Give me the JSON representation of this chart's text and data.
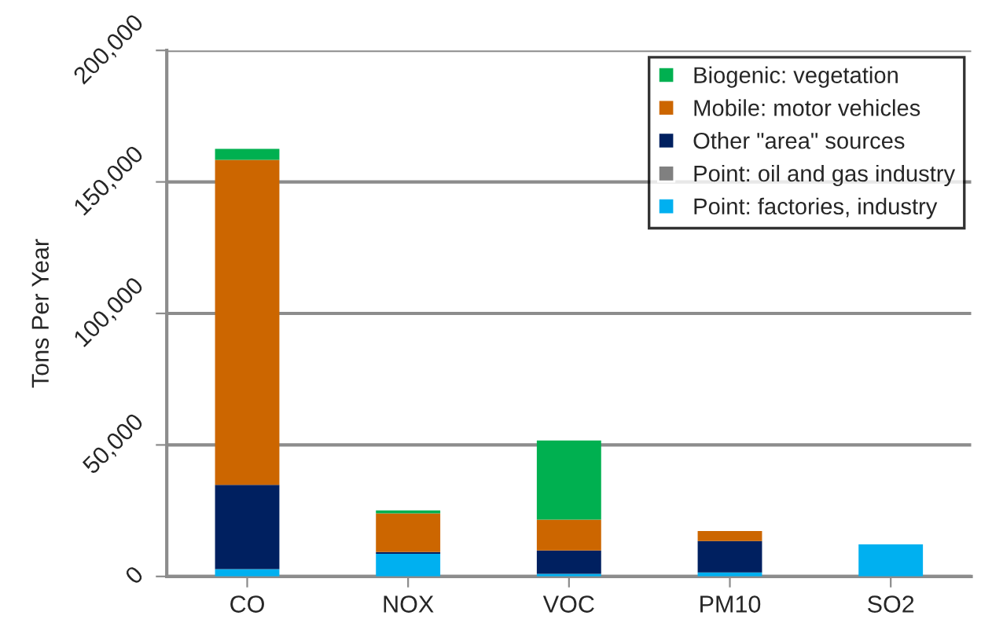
{
  "chart_data": {
    "type": "bar",
    "stacked": true,
    "ylabel": "Tons Per Year",
    "categories": [
      "CO",
      "NOX",
      "VOC",
      "PM10",
      "SO2"
    ],
    "series": [
      {
        "name": "Point: factories, industry",
        "color": "#00b0f0",
        "values": [
          2800,
          8600,
          1000,
          1500,
          12200
        ]
      },
      {
        "name": "Point: oil and gas industry",
        "color": "#808080",
        "values": [
          0,
          0,
          0,
          0,
          0
        ]
      },
      {
        "name": "Other \"area\" sources",
        "color": "#002060",
        "values": [
          32000,
          700,
          8900,
          12000,
          0
        ]
      },
      {
        "name": "Mobile: motor vehicles",
        "color": "#cc6600",
        "values": [
          123600,
          14700,
          11700,
          3800,
          0
        ]
      },
      {
        "name": "Biogenic: vegetation",
        "color": "#00b050",
        "values": [
          4200,
          1100,
          30100,
          0,
          0
        ]
      }
    ],
    "ylim": [
      0,
      200000
    ],
    "yticks": [
      {
        "value": 0,
        "label": "0"
      },
      {
        "value": 50000,
        "label": "50,000"
      },
      {
        "value": 100000,
        "label": "100,000"
      },
      {
        "value": 150000,
        "label": "150,000"
      },
      {
        "value": 200000,
        "label": "200,000"
      }
    ],
    "grid": "y",
    "legend": "top right"
  }
}
